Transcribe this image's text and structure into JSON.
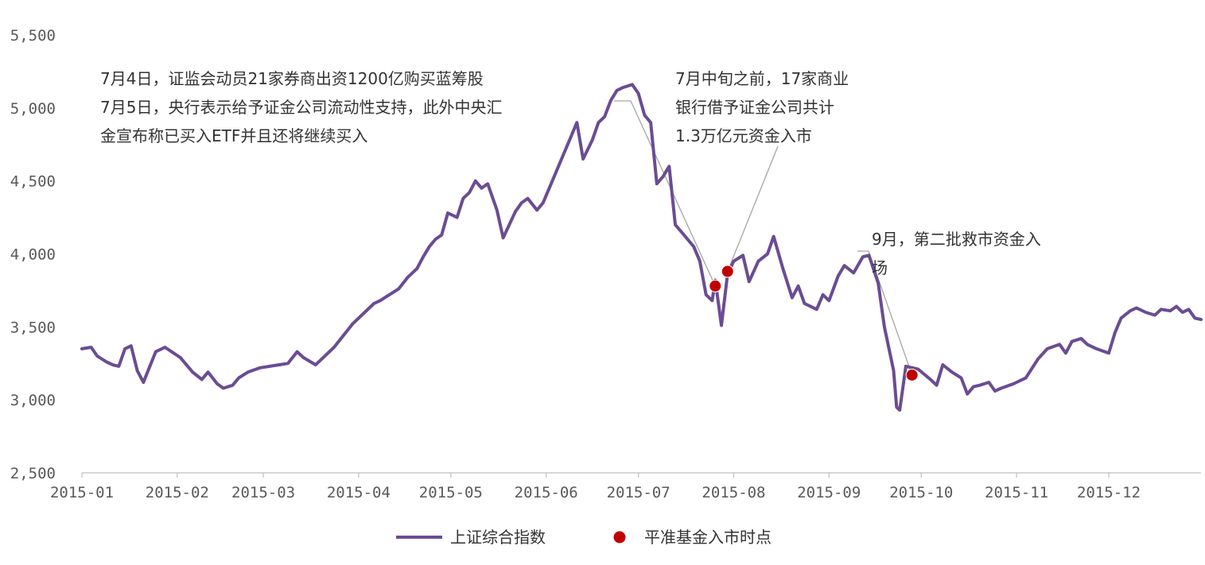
{
  "chart_data": {
    "type": "line",
    "ylim": [
      2500,
      5500
    ],
    "yticks": [
      "2,500",
      "3,000",
      "3,500",
      "4,000",
      "4,500",
      "5,000",
      "5,500"
    ],
    "x_tick_labels": [
      "2015-01",
      "2015-02",
      "2015-03",
      "2015-04",
      "2015-05",
      "2015-06",
      "2015-07",
      "2015-08",
      "2015-09",
      "2015-10",
      "2015-11",
      "2015-12"
    ],
    "series": [
      {
        "name": "上证综合指数",
        "color": "#6a4c93",
        "points": [
          [
            "2015-01-01",
            3350
          ],
          [
            "2015-01-04",
            3360
          ],
          [
            "2015-01-06",
            3300
          ],
          [
            "2015-01-09",
            3260
          ],
          [
            "2015-01-11",
            3240
          ],
          [
            "2015-01-13",
            3230
          ],
          [
            "2015-01-15",
            3350
          ],
          [
            "2015-01-17",
            3370
          ],
          [
            "2015-01-19",
            3200
          ],
          [
            "2015-01-21",
            3120
          ],
          [
            "2015-01-25",
            3330
          ],
          [
            "2015-01-28",
            3360
          ],
          [
            "2015-02-02",
            3290
          ],
          [
            "2015-02-06",
            3190
          ],
          [
            "2015-02-09",
            3140
          ],
          [
            "2015-02-11",
            3190
          ],
          [
            "2015-02-14",
            3110
          ],
          [
            "2015-02-16",
            3080
          ],
          [
            "2015-02-19",
            3100
          ],
          [
            "2015-02-21",
            3150
          ],
          [
            "2015-02-24",
            3190
          ],
          [
            "2015-02-28",
            3220
          ],
          [
            "2015-03-06",
            3240
          ],
          [
            "2015-03-09",
            3250
          ],
          [
            "2015-03-12",
            3330
          ],
          [
            "2015-03-14",
            3290
          ],
          [
            "2015-03-18",
            3240
          ],
          [
            "2015-03-21",
            3300
          ],
          [
            "2015-03-24",
            3360
          ],
          [
            "2015-03-27",
            3440
          ],
          [
            "2015-03-30",
            3520
          ],
          [
            "2015-04-03",
            3600
          ],
          [
            "2015-04-06",
            3660
          ],
          [
            "2015-04-08",
            3680
          ],
          [
            "2015-04-11",
            3720
          ],
          [
            "2015-04-14",
            3760
          ],
          [
            "2015-04-17",
            3840
          ],
          [
            "2015-04-20",
            3900
          ],
          [
            "2015-04-22",
            3980
          ],
          [
            "2015-04-24",
            4050
          ],
          [
            "2015-04-26",
            4100
          ],
          [
            "2015-04-28",
            4130
          ],
          [
            "2015-04-30",
            4280
          ],
          [
            "2015-05-03",
            4250
          ],
          [
            "2015-05-05",
            4380
          ],
          [
            "2015-05-07",
            4420
          ],
          [
            "2015-05-09",
            4500
          ],
          [
            "2015-05-11",
            4450
          ],
          [
            "2015-05-13",
            4480
          ],
          [
            "2015-05-16",
            4300
          ],
          [
            "2015-05-18",
            4110
          ],
          [
            "2015-05-20",
            4200
          ],
          [
            "2015-05-22",
            4290
          ],
          [
            "2015-05-24",
            4350
          ],
          [
            "2015-05-26",
            4380
          ],
          [
            "2015-05-29",
            4300
          ],
          [
            "2015-05-31",
            4350
          ],
          [
            "2015-06-03",
            4500
          ],
          [
            "2015-06-06",
            4650
          ],
          [
            "2015-06-09",
            4800
          ],
          [
            "2015-06-11",
            4900
          ],
          [
            "2015-06-13",
            4650
          ],
          [
            "2015-06-16",
            4780
          ],
          [
            "2015-06-18",
            4900
          ],
          [
            "2015-06-20",
            4940
          ],
          [
            "2015-06-22",
            5050
          ],
          [
            "2015-06-24",
            5120
          ],
          [
            "2015-06-26",
            5140
          ],
          [
            "2015-06-29",
            5160
          ],
          [
            "2015-07-01",
            5100
          ],
          [
            "2015-07-03",
            4950
          ],
          [
            "2015-07-05",
            4900
          ],
          [
            "2015-07-07",
            4480
          ],
          [
            "2015-07-09",
            4530
          ],
          [
            "2015-07-11",
            4600
          ],
          [
            "2015-07-13",
            4200
          ],
          [
            "2015-07-15",
            4150
          ],
          [
            "2015-07-17",
            4100
          ],
          [
            "2015-07-19",
            4050
          ],
          [
            "2015-07-21",
            3950
          ],
          [
            "2015-07-23",
            3720
          ],
          [
            "2015-07-25",
            3680
          ],
          [
            "2015-07-26",
            3820
          ],
          [
            "2015-07-28",
            3510
          ],
          [
            "2015-07-30",
            3860
          ],
          [
            "2015-08-01",
            3950
          ],
          [
            "2015-08-04",
            3990
          ],
          [
            "2015-08-06",
            3810
          ],
          [
            "2015-08-09",
            3950
          ],
          [
            "2015-08-12",
            4000
          ],
          [
            "2015-08-14",
            4120
          ],
          [
            "2015-08-17",
            3900
          ],
          [
            "2015-08-20",
            3700
          ],
          [
            "2015-08-22",
            3780
          ],
          [
            "2015-08-24",
            3660
          ],
          [
            "2015-08-28",
            3620
          ],
          [
            "2015-08-30",
            3720
          ],
          [
            "2015-09-01",
            3680
          ],
          [
            "2015-09-04",
            3850
          ],
          [
            "2015-09-06",
            3920
          ],
          [
            "2015-09-09",
            3870
          ],
          [
            "2015-09-12",
            3980
          ],
          [
            "2015-09-14",
            3990
          ],
          [
            "2015-09-17",
            3800
          ],
          [
            "2015-09-19",
            3500
          ],
          [
            "2015-09-22",
            3200
          ],
          [
            "2015-09-23",
            2950
          ],
          [
            "2015-09-24",
            2930
          ],
          [
            "2015-09-26",
            3230
          ],
          [
            "2015-09-30",
            3210
          ],
          [
            "2015-10-04",
            3140
          ],
          [
            "2015-10-06",
            3100
          ],
          [
            "2015-10-08",
            3240
          ],
          [
            "2015-10-11",
            3190
          ],
          [
            "2015-10-14",
            3150
          ],
          [
            "2015-10-16",
            3040
          ],
          [
            "2015-10-18",
            3090
          ],
          [
            "2015-10-20",
            3100
          ],
          [
            "2015-10-23",
            3120
          ],
          [
            "2015-10-25",
            3060
          ],
          [
            "2015-10-27",
            3080
          ],
          [
            "2015-10-31",
            3110
          ],
          [
            "2015-11-04",
            3150
          ],
          [
            "2015-11-08",
            3280
          ],
          [
            "2015-11-11",
            3350
          ],
          [
            "2015-11-15",
            3380
          ],
          [
            "2015-11-17",
            3320
          ],
          [
            "2015-11-19",
            3400
          ],
          [
            "2015-11-22",
            3420
          ],
          [
            "2015-11-24",
            3380
          ],
          [
            "2015-11-27",
            3350
          ],
          [
            "2015-12-01",
            3320
          ],
          [
            "2015-12-03",
            3460
          ],
          [
            "2015-12-05",
            3560
          ],
          [
            "2015-12-08",
            3610
          ],
          [
            "2015-12-10",
            3630
          ],
          [
            "2015-12-13",
            3600
          ],
          [
            "2015-12-16",
            3580
          ],
          [
            "2015-12-18",
            3620
          ],
          [
            "2015-12-21",
            3610
          ],
          [
            "2015-12-23",
            3640
          ],
          [
            "2015-12-25",
            3600
          ],
          [
            "2015-12-27",
            3620
          ],
          [
            "2015-12-29",
            3560
          ],
          [
            "2015-12-31",
            3550
          ]
        ]
      }
    ],
    "markers": {
      "name": "平准基金入市时点",
      "color": "#c00000",
      "points": [
        [
          "2015-07-26",
          3780
        ],
        [
          "2015-07-30",
          3880
        ],
        [
          "2015-09-28",
          3170
        ]
      ]
    },
    "annotations": [
      {
        "lines": [
          "7月4日，证监会动员21家券商出资1200亿购买蓝筹股",
          "7月5日，央行表示给予证金公司流动性支持，此外中央汇",
          "金宣布称已买入ETF并且还将继续买入"
        ],
        "target": [
          "2015-07-26",
          3780
        ]
      },
      {
        "lines": [
          "7月中旬之前，17家商业",
          "银行借予证金公司共计",
          "1.3万亿元资金入市"
        ],
        "target": [
          "2015-07-30",
          3880
        ]
      },
      {
        "lines": [
          "9月，第二批救市资金入",
          "场"
        ],
        "target": [
          "2015-09-28",
          3170
        ]
      }
    ],
    "legend_position": "bottom",
    "grid": false
  }
}
